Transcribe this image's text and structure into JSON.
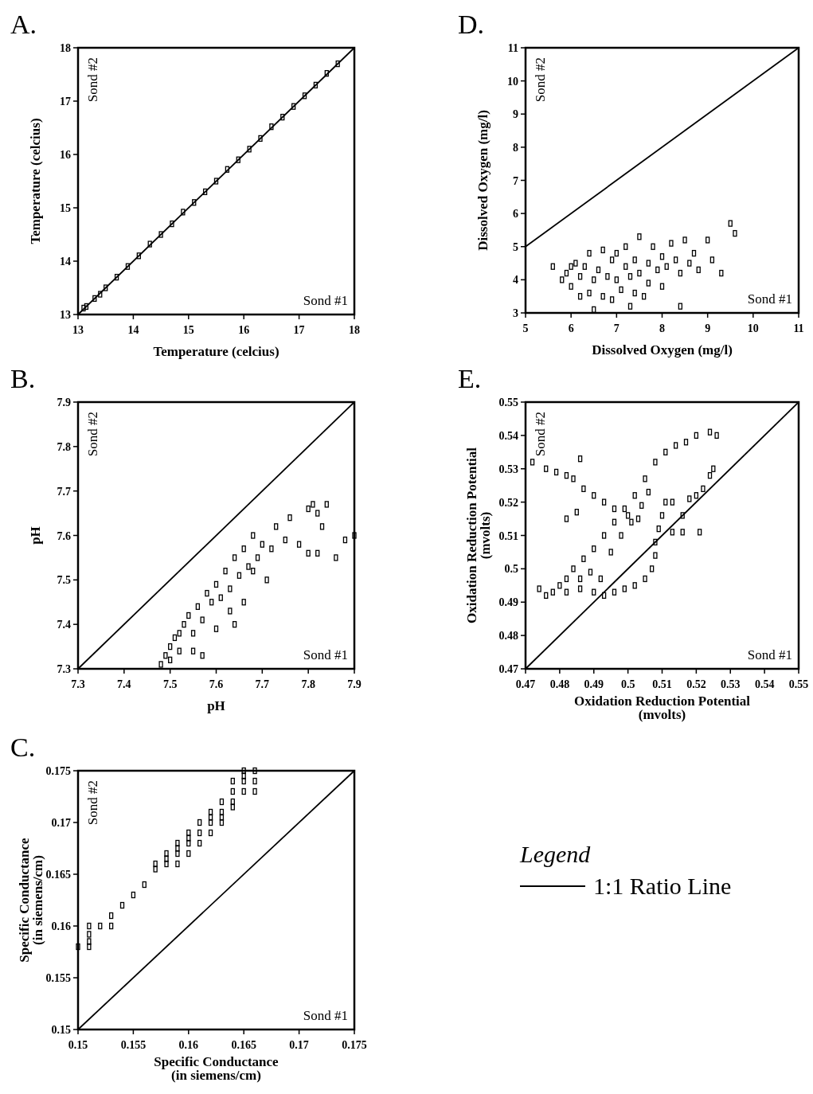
{
  "chart_data": [
    {
      "type": "scatter",
      "title": "A.",
      "xlabel": "Temperature (celcius)",
      "ylabel": "Temperature (celcius)",
      "xlim": [
        13,
        18
      ],
      "ylim": [
        13,
        18
      ],
      "xticks": [
        13,
        14,
        15,
        16,
        17,
        18
      ],
      "yticks": [
        13,
        14,
        15,
        16,
        17,
        18
      ],
      "annotations": [
        "Sond #2",
        "Sond #1"
      ],
      "series": [
        {
          "marker": "square",
          "color": "#000000",
          "x": [
            13.1,
            13.15,
            13.3,
            13.4,
            13.5,
            13.7,
            13.9,
            14.1,
            14.3,
            14.5,
            14.7,
            14.9,
            15.1,
            15.3,
            15.5,
            15.7,
            15.9,
            16.1,
            16.3,
            16.5,
            16.7,
            16.9,
            17.1,
            17.3,
            17.5,
            17.7
          ],
          "values": [
            13.12,
            13.15,
            13.3,
            13.38,
            13.5,
            13.7,
            13.9,
            14.1,
            14.32,
            14.5,
            14.7,
            14.92,
            15.1,
            15.3,
            15.5,
            15.72,
            15.9,
            16.1,
            16.3,
            16.52,
            16.7,
            16.9,
            17.1,
            17.3,
            17.52,
            17.7
          ]
        },
        {
          "type": "line",
          "color": "#000000",
          "x": [
            13,
            18
          ],
          "values": [
            13,
            18
          ]
        }
      ]
    },
    {
      "type": "scatter",
      "title": "B.",
      "xlabel": "pH",
      "ylabel": "pH",
      "xlim": [
        7.3,
        7.9
      ],
      "ylim": [
        7.3,
        7.9
      ],
      "xticks": [
        7.3,
        7.4,
        7.5,
        7.6,
        7.7,
        7.8,
        7.9
      ],
      "yticks": [
        7.3,
        7.4,
        7.5,
        7.6,
        7.7,
        7.8,
        7.9
      ],
      "annotations": [
        "Sond #2",
        "Sond #1"
      ],
      "series": [
        {
          "marker": "square",
          "color": "#000000",
          "x": [
            7.48,
            7.49,
            7.5,
            7.51,
            7.52,
            7.53,
            7.54,
            7.55,
            7.56,
            7.57,
            7.58,
            7.59,
            7.6,
            7.61,
            7.62,
            7.63,
            7.64,
            7.65,
            7.66,
            7.67,
            7.68,
            7.69,
            7.7,
            7.72,
            7.73,
            7.75,
            7.76,
            7.78,
            7.8,
            7.81,
            7.82,
            7.83,
            7.84,
            7.82,
            7.88,
            7.9,
            7.86,
            7.6,
            7.55,
            7.57,
            7.64,
            7.71,
            7.66,
            7.8,
            7.52,
            7.5,
            7.63,
            7.68
          ],
          "values": [
            7.31,
            7.33,
            7.35,
            7.37,
            7.34,
            7.4,
            7.42,
            7.38,
            7.44,
            7.41,
            7.47,
            7.45,
            7.49,
            7.46,
            7.52,
            7.48,
            7.55,
            7.51,
            7.57,
            7.53,
            7.6,
            7.55,
            7.58,
            7.57,
            7.62,
            7.59,
            7.64,
            7.58,
            7.66,
            7.67,
            7.65,
            7.62,
            7.67,
            7.56,
            7.59,
            7.6,
            7.55,
            7.39,
            7.34,
            7.33,
            7.4,
            7.5,
            7.45,
            7.56,
            7.38,
            7.32,
            7.43,
            7.52
          ]
        },
        {
          "type": "line",
          "color": "#000000",
          "x": [
            7.3,
            7.9
          ],
          "values": [
            7.3,
            7.9
          ]
        }
      ]
    },
    {
      "type": "scatter",
      "title": "C.",
      "xlabel": "Specific Conductance\n(in siemens/cm)",
      "ylabel": "Specific Conductance\n(in siemens/cm)",
      "xlim": [
        0.15,
        0.175
      ],
      "ylim": [
        0.15,
        0.175
      ],
      "xticks": [
        0.15,
        0.155,
        0.16,
        0.165,
        0.17,
        0.175
      ],
      "yticks": [
        0.15,
        0.155,
        0.16,
        0.165,
        0.17,
        0.175
      ],
      "annotations": [
        "Sond #2",
        "Sond #1"
      ],
      "legend": "right",
      "legend_title": "Legend",
      "series": [
        {
          "marker": "square",
          "color": "#000000",
          "x": [
            0.15,
            0.151,
            0.151,
            0.151,
            0.151,
            0.152,
            0.153,
            0.153,
            0.154,
            0.155,
            0.156,
            0.157,
            0.157,
            0.158,
            0.158,
            0.158,
            0.159,
            0.159,
            0.159,
            0.159,
            0.16,
            0.16,
            0.16,
            0.16,
            0.161,
            0.161,
            0.161,
            0.162,
            0.162,
            0.162,
            0.162,
            0.163,
            0.163,
            0.163,
            0.163,
            0.164,
            0.164,
            0.164,
            0.164,
            0.165,
            0.165,
            0.165,
            0.165,
            0.166,
            0.166,
            0.166
          ],
          "values": [
            0.158,
            0.16,
            0.1592,
            0.1585,
            0.158,
            0.16,
            0.161,
            0.16,
            0.162,
            0.163,
            0.164,
            0.166,
            0.1655,
            0.167,
            0.1665,
            0.166,
            0.168,
            0.1675,
            0.167,
            0.166,
            0.169,
            0.1685,
            0.168,
            0.167,
            0.17,
            0.169,
            0.168,
            0.171,
            0.1705,
            0.17,
            0.169,
            0.172,
            0.171,
            0.1705,
            0.17,
            0.174,
            0.173,
            0.172,
            0.1715,
            0.175,
            0.1745,
            0.174,
            0.173,
            0.175,
            0.174,
            0.173
          ]
        },
        {
          "type": "line",
          "name": "1:1 Ratio Line",
          "color": "#000000",
          "x": [
            0.15,
            0.175
          ],
          "values": [
            0.15,
            0.175
          ]
        }
      ]
    },
    {
      "type": "scatter",
      "title": "D.",
      "xlabel": "Dissolved Oxygen (mg/l)",
      "ylabel": "Dissolved Oxygen (mg/l)",
      "xlim": [
        5,
        11
      ],
      "ylim": [
        3,
        11
      ],
      "xticks": [
        5,
        6,
        7,
        8,
        9,
        10,
        11
      ],
      "yticks": [
        3,
        4,
        5,
        6,
        7,
        8,
        9,
        10,
        11
      ],
      "annotations": [
        "Sond #2",
        "Sond #1"
      ],
      "series": [
        {
          "marker": "square",
          "color": "#000000",
          "x": [
            5.6,
            5.8,
            5.9,
            6.0,
            6.0,
            6.1,
            6.2,
            6.2,
            6.3,
            6.4,
            6.4,
            6.5,
            6.5,
            6.6,
            6.7,
            6.7,
            6.8,
            6.9,
            6.9,
            7.0,
            7.0,
            7.1,
            7.2,
            7.2,
            7.3,
            7.3,
            7.4,
            7.4,
            7.5,
            7.5,
            7.6,
            7.7,
            7.7,
            7.8,
            7.9,
            8.0,
            8.0,
            8.1,
            8.2,
            8.3,
            8.4,
            8.4,
            8.5,
            8.6,
            8.7,
            8.8,
            9.0,
            9.1,
            9.3,
            9.5,
            9.6
          ],
          "values": [
            4.4,
            4.0,
            4.2,
            4.4,
            3.8,
            4.5,
            3.5,
            4.1,
            4.4,
            3.6,
            4.8,
            4.0,
            3.1,
            4.3,
            3.5,
            4.9,
            4.1,
            3.4,
            4.6,
            4.0,
            4.8,
            3.7,
            4.4,
            5.0,
            3.2,
            4.1,
            4.6,
            3.6,
            5.3,
            4.2,
            3.5,
            4.5,
            3.9,
            5.0,
            4.3,
            4.7,
            3.8,
            4.4,
            5.1,
            4.6,
            3.2,
            4.2,
            5.2,
            4.5,
            4.8,
            4.3,
            5.2,
            4.6,
            4.2,
            5.7,
            5.4
          ]
        },
        {
          "type": "line",
          "color": "#000000",
          "x": [
            5,
            11
          ],
          "values": [
            5,
            11
          ]
        }
      ]
    },
    {
      "type": "scatter",
      "title": "E.",
      "xlabel": "Oxidation Reduction Potential\n(mvolts)",
      "ylabel": "Oxidation Reduction Potential\n(mvolts)",
      "xlim": [
        0.47,
        0.55
      ],
      "ylim": [
        0.47,
        0.55
      ],
      "xticks": [
        0.47,
        0.48,
        0.49,
        0.5,
        0.51,
        0.52,
        0.53,
        0.54,
        0.55
      ],
      "yticks": [
        0.47,
        0.48,
        0.49,
        0.5,
        0.51,
        0.52,
        0.53,
        0.54,
        0.55
      ],
      "annotations": [
        "Sond #2",
        "Sond #1"
      ],
      "series": [
        {
          "marker": "square",
          "color": "#000000",
          "x": [
            0.472,
            0.476,
            0.479,
            0.482,
            0.484,
            0.486,
            0.487,
            0.49,
            0.493,
            0.496,
            0.5,
            0.503,
            0.474,
            0.476,
            0.478,
            0.48,
            0.482,
            0.484,
            0.487,
            0.49,
            0.493,
            0.496,
            0.499,
            0.502,
            0.505,
            0.508,
            0.511,
            0.514,
            0.517,
            0.52,
            0.524,
            0.526,
            0.482,
            0.486,
            0.49,
            0.493,
            0.496,
            0.499,
            0.502,
            0.505,
            0.507,
            0.508,
            0.508,
            0.509,
            0.51,
            0.511,
            0.482,
            0.485,
            0.495,
            0.498,
            0.501,
            0.504,
            0.506,
            0.513,
            0.516,
            0.518,
            0.52,
            0.522,
            0.524,
            0.525,
            0.513,
            0.516,
            0.521,
            0.489,
            0.492,
            0.486
          ],
          "values": [
            0.532,
            0.53,
            0.529,
            0.528,
            0.527,
            0.533,
            0.524,
            0.522,
            0.52,
            0.518,
            0.516,
            0.515,
            0.494,
            0.492,
            0.493,
            0.495,
            0.497,
            0.5,
            0.503,
            0.506,
            0.51,
            0.514,
            0.518,
            0.522,
            0.527,
            0.532,
            0.535,
            0.537,
            0.538,
            0.54,
            0.541,
            0.54,
            0.493,
            0.494,
            0.493,
            0.492,
            0.493,
            0.494,
            0.495,
            0.497,
            0.5,
            0.504,
            0.508,
            0.512,
            0.516,
            0.52,
            0.515,
            0.517,
            0.505,
            0.51,
            0.514,
            0.519,
            0.523,
            0.52,
            0.516,
            0.521,
            0.522,
            0.524,
            0.528,
            0.53,
            0.511,
            0.511,
            0.511,
            0.499,
            0.497,
            0.497
          ]
        },
        {
          "type": "line",
          "color": "#000000",
          "x": [
            0.47,
            0.55
          ],
          "values": [
            0.47,
            0.55
          ]
        }
      ]
    }
  ]
}
